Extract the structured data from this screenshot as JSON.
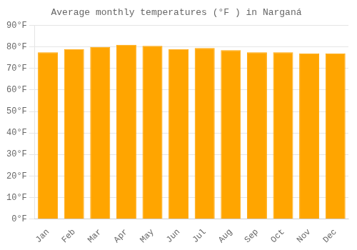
{
  "chart_data": {
    "type": "bar",
    "title": "Average monthly temperatures (°F ) in Narganá",
    "categories": [
      "Jan",
      "Feb",
      "Mar",
      "Apr",
      "May",
      "Jun",
      "Jul",
      "Aug",
      "Sep",
      "Oct",
      "Nov",
      "Dec"
    ],
    "values": [
      77.5,
      79.0,
      80.0,
      81.0,
      80.5,
      79.0,
      79.5,
      78.5,
      77.5,
      77.5,
      77.0,
      77.0
    ],
    "color": "#FFA500",
    "ylim": [
      0,
      90
    ],
    "yticks": [
      {
        "value": 0,
        "label": "0°F"
      },
      {
        "value": 10,
        "label": "10°F"
      },
      {
        "value": 20,
        "label": "20°F"
      },
      {
        "value": 30,
        "label": "30°F"
      },
      {
        "value": 40,
        "label": "40°F"
      },
      {
        "value": 50,
        "label": "50°F"
      },
      {
        "value": 60,
        "label": "60°F"
      },
      {
        "value": 70,
        "label": "70°F"
      },
      {
        "value": 80,
        "label": "80°F"
      },
      {
        "value": 90,
        "label": "90°F"
      }
    ],
    "grid": true
  }
}
